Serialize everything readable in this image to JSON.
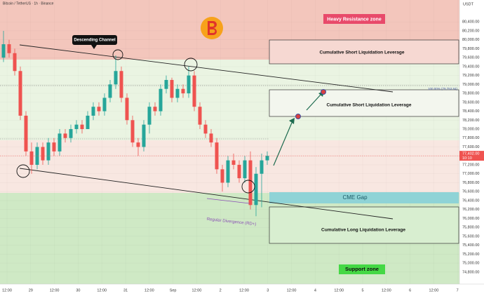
{
  "chart_data": {
    "type": "candlestick",
    "title": "Bitcoin / TetherUS · 1h · Binance",
    "y_axis_unit": "USDT",
    "ylim": [
      74530,
      80890
    ],
    "yticks": [
      {
        "value": 74800,
        "label": "74,800.00"
      },
      {
        "value": 75000,
        "label": "75,000.00"
      },
      {
        "value": 75200,
        "label": "75,200.00"
      },
      {
        "value": 75400,
        "label": "75,400.00"
      },
      {
        "value": 75600,
        "label": "75,600.00"
      },
      {
        "value": 75800,
        "label": "75,800.00"
      },
      {
        "value": 76000,
        "label": "76,000.00"
      },
      {
        "value": 76200,
        "label": "76,200.00"
      },
      {
        "value": 76400,
        "label": "76,400.00"
      },
      {
        "value": 76600,
        "label": "76,600.00"
      },
      {
        "value": 76800,
        "label": "76,800.00"
      },
      {
        "value": 77000,
        "label": "77,000.00"
      },
      {
        "value": 77200,
        "label": "77,200.00"
      },
      {
        "value": 77400,
        "label": "77,400.00"
      },
      {
        "value": 77600,
        "label": "77,600.00"
      },
      {
        "value": 77800,
        "label": "77,800.00"
      },
      {
        "value": 78000,
        "label": "78,000.00"
      },
      {
        "value": 78200,
        "label": "78,200.00"
      },
      {
        "value": 78400,
        "label": "78,400.00"
      },
      {
        "value": 78600,
        "label": "78,600.00"
      },
      {
        "value": 78800,
        "label": "78,800.00"
      },
      {
        "value": 79000,
        "label": "79,000.00"
      },
      {
        "value": 79200,
        "label": "79,200.00"
      },
      {
        "value": 79400,
        "label": "79,400.00"
      },
      {
        "value": 79600,
        "label": "79,600.00"
      },
      {
        "value": 79800,
        "label": "79,800.00"
      },
      {
        "value": 80000,
        "label": "80,000.00"
      },
      {
        "value": 80200,
        "label": "80,200.00"
      },
      {
        "value": 80400,
        "label": "80,400.00"
      }
    ],
    "x_labels": [
      "12:00",
      "29",
      "12:00",
      "30",
      "12:00",
      "31",
      "12:00",
      "Sep",
      "12:00",
      "2",
      "12:00",
      "3",
      "12:00",
      "4",
      "12:00",
      "5",
      "12:00",
      "6",
      "12:00",
      "7"
    ],
    "grid": true,
    "up_color": "#26a69a",
    "down_color": "#ef5350",
    "open": [
      79600,
      79900,
      79700,
      79300,
      78300,
      77500,
      77200,
      77600,
      77300,
      77700,
      77500,
      77900,
      77800,
      78000,
      78100,
      78000,
      78300,
      78500,
      78400,
      78700,
      79000,
      79300,
      78700,
      78200,
      77700,
      77600,
      78100,
      78500,
      78400,
      78900,
      79100,
      78700,
      78900,
      78800,
      79200,
      78500,
      78100,
      77900,
      77700,
      77100,
      76800,
      77300,
      77200,
      76900,
      77300,
      76300,
      77000,
      77300
    ],
    "high": [
      80200,
      80000,
      79800,
      79400,
      78400,
      77700,
      77700,
      77700,
      77800,
      77800,
      78000,
      78000,
      78100,
      78200,
      78200,
      78400,
      78600,
      78600,
      78800,
      79100,
      79650,
      79400,
      78800,
      78300,
      77800,
      78200,
      78600,
      78600,
      79000,
      79200,
      79150,
      79000,
      79000,
      79400,
      79300,
      78600,
      78200,
      78000,
      77800,
      77200,
      77400,
      77450,
      77300,
      77400,
      77500,
      77150,
      77450,
      77500
    ],
    "low": [
      79500,
      79600,
      79200,
      78200,
      77400,
      77000,
      77100,
      77200,
      77200,
      77400,
      77400,
      77700,
      77700,
      77900,
      77900,
      78000,
      78200,
      78300,
      78300,
      78600,
      78900,
      78600,
      78100,
      77600,
      77400,
      77500,
      77900,
      78300,
      78300,
      78800,
      78600,
      78600,
      78700,
      78700,
      78400,
      78000,
      77800,
      77600,
      77000,
      76600,
      76700,
      77100,
      76800,
      76800,
      76200,
      76050,
      76250,
      77200
    ],
    "close": [
      79900,
      79700,
      79300,
      78300,
      77500,
      77200,
      77600,
      77300,
      77700,
      77500,
      77900,
      77800,
      78000,
      78100,
      78000,
      78300,
      78500,
      78400,
      78700,
      79000,
      79300,
      78700,
      78200,
      77700,
      77600,
      78100,
      78500,
      78400,
      78900,
      79100,
      78700,
      78900,
      78800,
      79200,
      78500,
      78100,
      77900,
      77700,
      77100,
      76800,
      77300,
      77200,
      76900,
      77300,
      76300,
      77000,
      77300,
      77402
    ],
    "last_price": {
      "value": 77402,
      "label": "77,402.00"
    },
    "countdown": "10:10",
    "annotations": [
      "Heavy Resistance zone",
      "Cumulative Short Liquidation Leverage",
      "Cumulative Short Liquidation Leverage",
      "CME Gap",
      "Cumulative Long Liquidation Leverage",
      "Support zone",
      "Descending Channel",
      "Regular Divergence (RD+)",
      "100.00% (79,753.84)"
    ]
  }
}
